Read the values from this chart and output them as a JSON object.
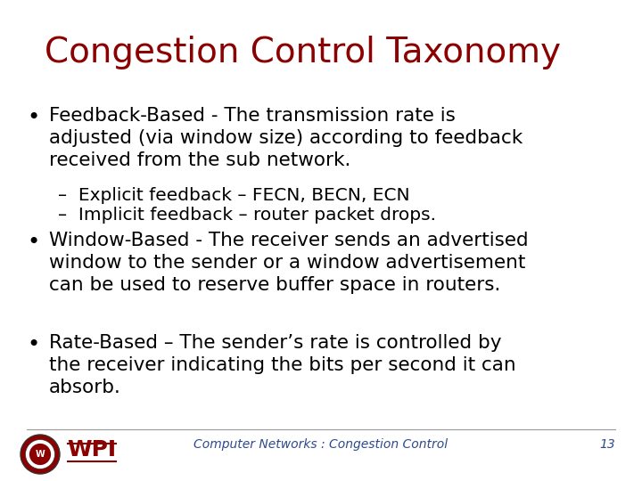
{
  "title": "Congestion Control Taxonomy",
  "title_color": "#8B0000",
  "title_fontsize": 28,
  "background_color": "#FFFFFF",
  "bullet_color": "#000000",
  "bullet_fontsize": 15.5,
  "sub_bullet_fontsize": 14.5,
  "footer_text": "Computer Networks : Congestion Control",
  "footer_page": "13",
  "footer_color": "#2E4A8B",
  "footer_fontsize": 10,
  "bullet1": "Feedback-Based - The transmission rate is\nadjusted (via window size) according to feedback\nreceived from the sub network.",
  "sub1": "–  Explicit feedback – FECN, BECN, ECN",
  "sub2": "–  Implicit feedback – router packet drops.",
  "bullet2": "Window-Based - The receiver sends an advertised\nwindow to the sender or a window advertisement\ncan be used to reserve buffer space in routers.",
  "bullet3": "Rate-Based – The sender’s rate is controlled by\nthe receiver indicating the bits per second it can\nabsorb."
}
